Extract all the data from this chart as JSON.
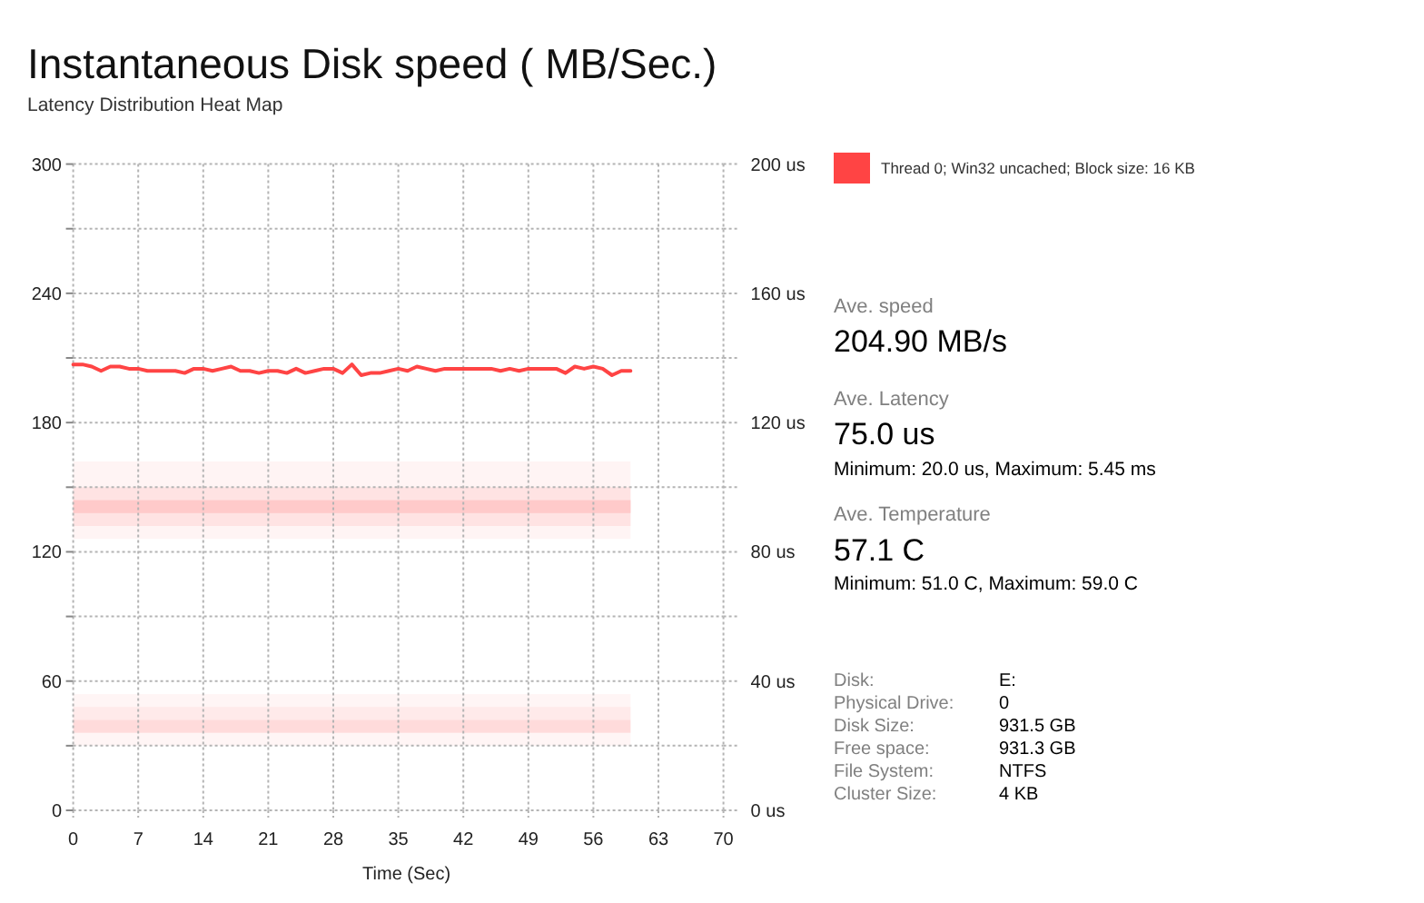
{
  "chart_data": [
    {
      "type": "line",
      "title": "Instantaneous Disk speed ( MB/Sec.)",
      "subtitle": "Latency Distribution Heat Map",
      "xlabel": "Time (Sec)",
      "x": [
        0,
        1,
        2,
        3,
        4,
        5,
        6,
        7,
        8,
        9,
        10,
        11,
        12,
        13,
        14,
        15,
        16,
        17,
        18,
        19,
        20,
        21,
        22,
        23,
        24,
        25,
        26,
        27,
        28,
        29,
        30,
        31,
        32,
        33,
        34,
        35,
        36,
        37,
        38,
        39,
        40,
        41,
        42,
        43,
        44,
        45,
        46,
        47,
        48,
        49,
        50,
        51,
        52,
        53,
        54,
        55,
        56,
        57,
        58,
        59,
        60
      ],
      "series": [
        {
          "name": "Thread 0; Win32 uncached; Block size: 16 KB",
          "color": "#ff4444",
          "values": [
            207,
            207,
            206,
            204,
            206,
            206,
            205,
            205,
            204,
            204,
            204,
            204,
            203,
            205,
            205,
            204,
            205,
            206,
            204,
            204,
            203,
            204,
            204,
            203,
            205,
            203,
            204,
            205,
            205,
            203,
            207,
            202,
            203,
            203,
            204,
            205,
            204,
            206,
            205,
            204,
            205,
            205,
            205,
            205,
            205,
            205,
            204,
            205,
            204,
            205,
            205,
            205,
            205,
            203,
            206,
            205,
            206,
            205,
            202,
            204,
            204
          ]
        }
      ],
      "xlim": [
        0,
        70
      ],
      "xticks": [
        0,
        7,
        14,
        21,
        28,
        35,
        42,
        49,
        56,
        63,
        70
      ],
      "ylim": [
        0,
        300
      ],
      "yticks": [
        0,
        {
          "value": 30,
          "label": null
        },
        60,
        {
          "value": 90,
          "label": null
        },
        120,
        {
          "value": 150,
          "label": null
        },
        180,
        {
          "value": 210,
          "label": null
        },
        240,
        {
          "value": 270,
          "label": null
        },
        300
      ],
      "y2lim": [
        0,
        200
      ],
      "y2ticks": [
        {
          "value": 0,
          "label": "0 us"
        },
        {
          "value": 20,
          "label": null
        },
        {
          "value": 40,
          "label": "40 us"
        },
        {
          "value": 60,
          "label": null
        },
        {
          "value": 80,
          "label": "80 us"
        },
        {
          "value": 100,
          "label": null
        },
        {
          "value": 120,
          "label": "120 us"
        },
        {
          "value": 140,
          "label": null
        },
        {
          "value": 160,
          "label": "160 us"
        },
        {
          "value": 180,
          "label": null
        },
        {
          "value": 200,
          "label": "200 us"
        }
      ],
      "bands": [
        {
          "axis": "y2",
          "from": 84,
          "to": 108,
          "color": "#fff4f4"
        },
        {
          "axis": "y2",
          "from": 88,
          "to": 100,
          "color": "#ffe3e3"
        },
        {
          "axis": "y2",
          "from": 92,
          "to": 96,
          "color": "#ffcaca"
        },
        {
          "axis": "y2",
          "from": 20,
          "to": 36,
          "color": "#fff5f5"
        },
        {
          "axis": "y2",
          "from": 28,
          "to": 32,
          "color": "#ffeaea"
        },
        {
          "axis": "y2",
          "from": 24,
          "to": 28,
          "color": "#ffdbdb"
        }
      ],
      "grid": true,
      "legend": "right",
      "line_style": "solid"
    },
    {
      "type": "other",
      "annotations": [
        "Ave. speed",
        "204.90 MB/s",
        "Ave. Latency",
        "75.0 us",
        "Minimum: 20.0 us, Maximum: 5.45 ms",
        "Ave. Temperature",
        "57.1 C",
        "Minimum: 51.0 C, Maximum: 59.0 C",
        "Disk:",
        "E:",
        "Physical Drive:",
        "0",
        "Disk Size:",
        "931.5 GB",
        "Free space:",
        "931.3 GB",
        "File System:",
        "NTFS",
        "Cluster Size:",
        "4 KB"
      ]
    }
  ]
}
